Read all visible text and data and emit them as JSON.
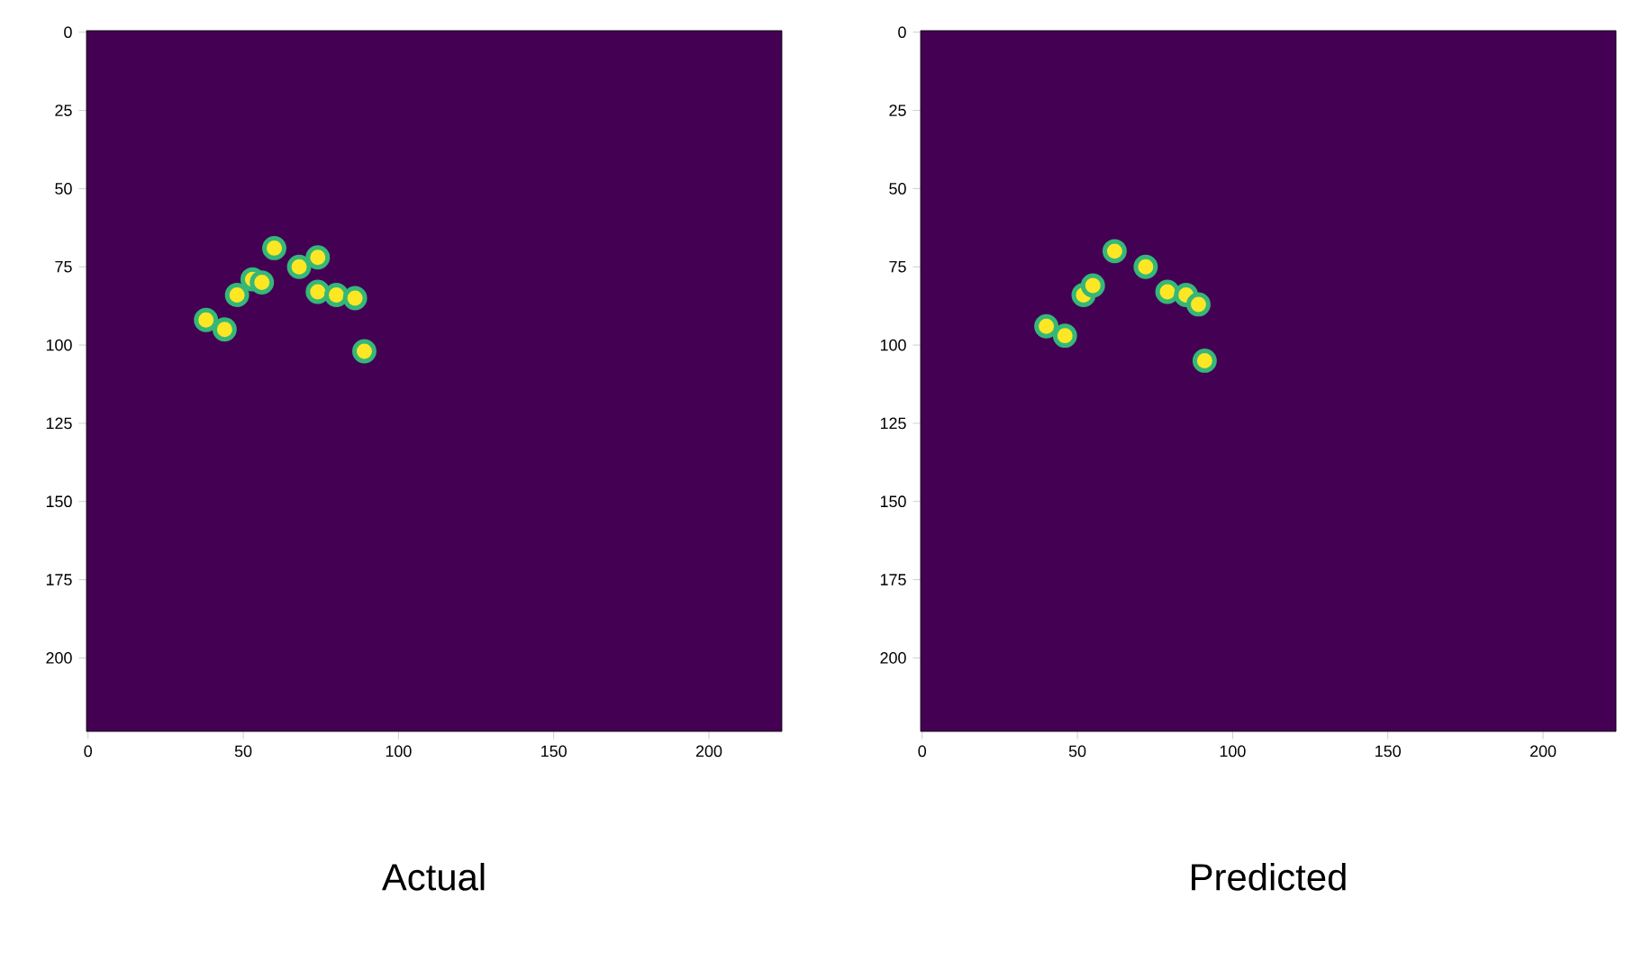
{
  "chart_data": [
    {
      "type": "scatter",
      "xlabel": "Actual",
      "marker": "circle",
      "color": "#fde725",
      "x": [
        38,
        44,
        48,
        53,
        56,
        60,
        68,
        74,
        74,
        80,
        86,
        89
      ],
      "values": [
        92,
        95,
        84,
        79,
        80,
        69,
        75,
        72,
        83,
        84,
        85,
        102
      ],
      "xlim": [
        -0.5,
        223.5
      ],
      "ylim": [
        223.5,
        -0.5
      ],
      "xticks": [
        0,
        50,
        100,
        150,
        200
      ],
      "yticks": [
        0,
        25,
        50,
        75,
        100,
        125,
        150,
        175,
        200
      ]
    },
    {
      "type": "scatter",
      "xlabel": "Predicted",
      "marker": "circle",
      "color": "#fde725",
      "x": [
        40,
        46,
        52,
        55,
        62,
        72,
        79,
        85,
        89,
        91
      ],
      "values": [
        94,
        97,
        84,
        81,
        70,
        75,
        83,
        84,
        87,
        105
      ],
      "xlim": [
        -0.5,
        223.5
      ],
      "ylim": [
        223.5,
        -0.5
      ],
      "xticks": [
        0,
        50,
        100,
        150,
        200
      ],
      "yticks": [
        0,
        25,
        50,
        75,
        100,
        125,
        150,
        175,
        200
      ]
    }
  ]
}
